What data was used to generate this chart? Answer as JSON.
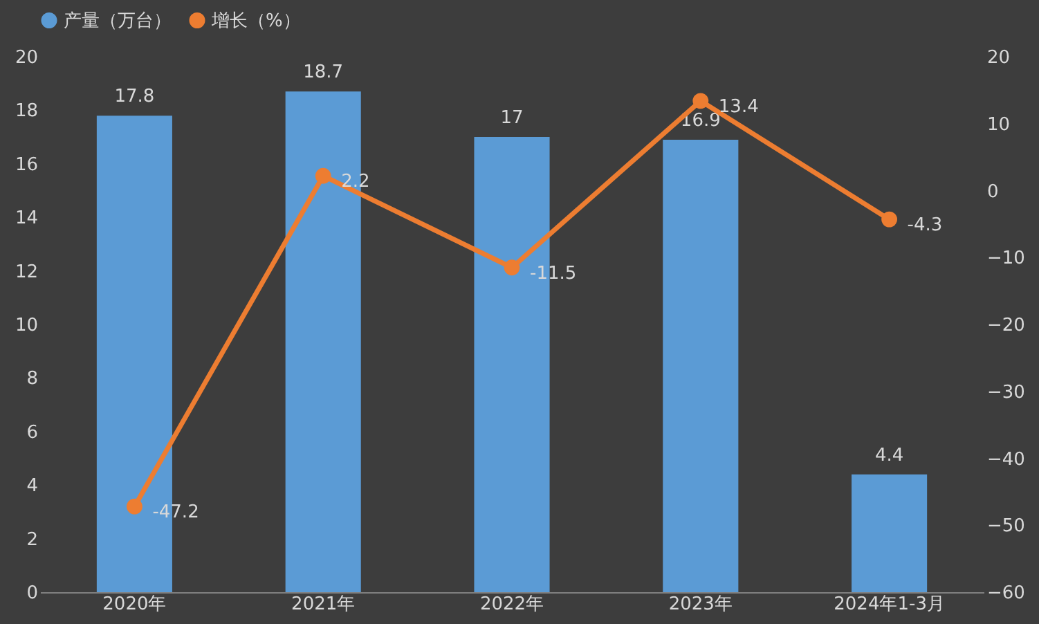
{
  "chart_data": {
    "type": "bar",
    "categories": [
      "2020年",
      "2021年",
      "2022年",
      "2023年",
      "2024年1-3月"
    ],
    "series": [
      {
        "name": "产量（万台）",
        "color": "#5b9bd5",
        "values": [
          17.8,
          18.7,
          17,
          16.9,
          4.4
        ]
      },
      {
        "name": "增长（%）",
        "type": "line",
        "axis": "y2",
        "color": "#ed7d31",
        "marker": "circle",
        "line_style": "solid",
        "values": [
          -47.2,
          2.2,
          -11.5,
          13.4,
          -4.3
        ]
      }
    ],
    "ylim": [
      0,
      20
    ],
    "yticks": [
      0,
      2,
      4,
      6,
      8,
      10,
      12,
      14,
      16,
      18,
      20
    ],
    "y2lim": [
      -60,
      20
    ],
    "y2ticks": [
      -60,
      -50,
      -40,
      -30,
      -20,
      -10,
      0,
      10,
      20
    ],
    "data_labels": true,
    "grid": false,
    "legend": "top"
  }
}
